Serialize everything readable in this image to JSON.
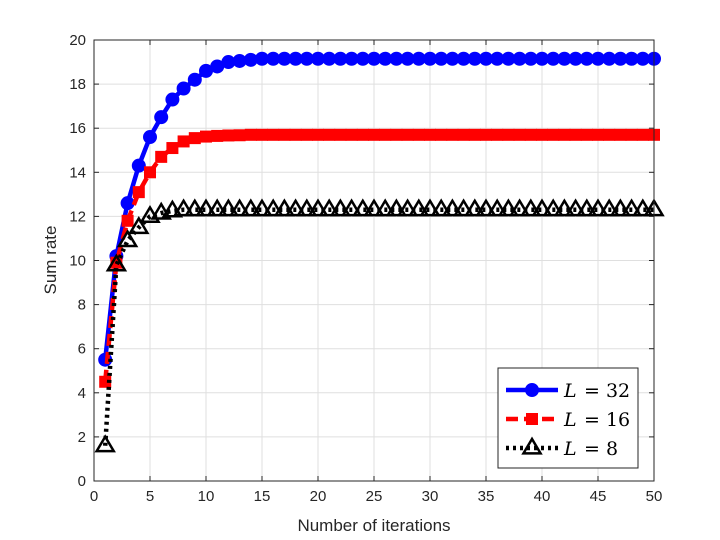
{
  "chart_data": {
    "type": "line",
    "title": "",
    "xlabel": "Number of iterations",
    "ylabel": "Sum rate",
    "xlim": [
      0,
      50
    ],
    "ylim": [
      0,
      20
    ],
    "xticks": [
      0,
      5,
      10,
      15,
      20,
      25,
      30,
      35,
      40,
      45,
      50
    ],
    "yticks": [
      0,
      2,
      4,
      6,
      8,
      10,
      12,
      14,
      16,
      18,
      20
    ],
    "grid": true,
    "legend_position": "bottom-right",
    "x": [
      1,
      2,
      3,
      4,
      5,
      6,
      7,
      8,
      9,
      10,
      11,
      12,
      13,
      14,
      15,
      16,
      17,
      18,
      19,
      20,
      21,
      22,
      23,
      24,
      25,
      26,
      27,
      28,
      29,
      30,
      31,
      32,
      33,
      34,
      35,
      36,
      37,
      38,
      39,
      40,
      41,
      42,
      43,
      44,
      45,
      46,
      47,
      48,
      49,
      50
    ],
    "series": [
      {
        "name": "L = 32",
        "legend_lhs": "L",
        "legend_rhs": "= 32",
        "color": "#0000ff",
        "marker": "circle",
        "line_style": "solid",
        "values": [
          5.5,
          10.2,
          12.6,
          14.3,
          15.6,
          16.5,
          17.3,
          17.8,
          18.2,
          18.6,
          18.8,
          19.0,
          19.05,
          19.1,
          19.15,
          19.15,
          19.15,
          19.15,
          19.15,
          19.15,
          19.15,
          19.15,
          19.15,
          19.15,
          19.15,
          19.15,
          19.15,
          19.15,
          19.15,
          19.15,
          19.15,
          19.15,
          19.15,
          19.15,
          19.15,
          19.15,
          19.15,
          19.15,
          19.15,
          19.15,
          19.15,
          19.15,
          19.15,
          19.15,
          19.15,
          19.15,
          19.15,
          19.15,
          19.15,
          19.15
        ]
      },
      {
        "name": "L = 16",
        "legend_lhs": "L",
        "legend_rhs": "= 16",
        "color": "#ff0000",
        "marker": "square",
        "line_style": "dashed",
        "values": [
          4.5,
          9.9,
          11.8,
          13.1,
          14.0,
          14.7,
          15.1,
          15.4,
          15.55,
          15.62,
          15.65,
          15.67,
          15.68,
          15.7,
          15.7,
          15.7,
          15.7,
          15.7,
          15.7,
          15.7,
          15.7,
          15.7,
          15.7,
          15.7,
          15.7,
          15.7,
          15.7,
          15.7,
          15.7,
          15.7,
          15.7,
          15.7,
          15.7,
          15.7,
          15.7,
          15.7,
          15.7,
          15.7,
          15.7,
          15.7,
          15.7,
          15.7,
          15.7,
          15.7,
          15.7,
          15.7,
          15.7,
          15.7,
          15.7,
          15.7
        ]
      },
      {
        "name": "L = 8",
        "legend_lhs": "L",
        "legend_rhs": "= 8",
        "color": "#000000",
        "marker": "triangle",
        "line_style": "dotted",
        "values": [
          1.6,
          9.8,
          10.9,
          11.5,
          12.0,
          12.15,
          12.25,
          12.3,
          12.3,
          12.3,
          12.3,
          12.3,
          12.3,
          12.3,
          12.3,
          12.3,
          12.3,
          12.3,
          12.3,
          12.3,
          12.3,
          12.3,
          12.3,
          12.3,
          12.3,
          12.3,
          12.3,
          12.3,
          12.3,
          12.3,
          12.3,
          12.3,
          12.3,
          12.3,
          12.3,
          12.3,
          12.3,
          12.3,
          12.3,
          12.3,
          12.3,
          12.3,
          12.3,
          12.3,
          12.3,
          12.3,
          12.3,
          12.3,
          12.3,
          12.3
        ]
      }
    ]
  }
}
